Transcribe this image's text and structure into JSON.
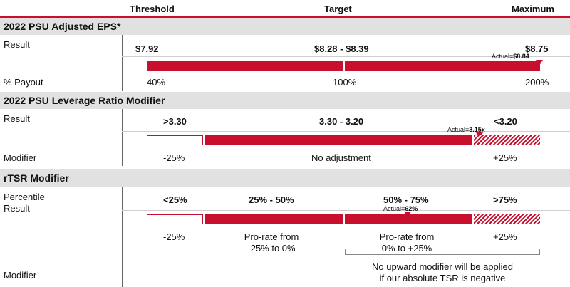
{
  "header": {
    "threshold": "Threshold",
    "target": "Target",
    "maximum": "Maximum"
  },
  "eps": {
    "title": "2022 PSU Adjusted EPS*",
    "result_label": "Result",
    "payout_label": "% Payout",
    "values": [
      "$7.92",
      "$8.28 - $8.39",
      "$8.75"
    ],
    "actual_prefix": "Actual=",
    "actual_value": "$8.84",
    "payouts": [
      "40%",
      "100%",
      "200%"
    ]
  },
  "leverage": {
    "title": "2022 PSU Leverage Ratio Modifier",
    "result_label": "Result",
    "modifier_label": "Modifier",
    "values": [
      ">3.30",
      "3.30 - 3.20",
      "<3.20"
    ],
    "actual_prefix": "Actual=",
    "actual_value": "3.15x",
    "modifiers": [
      "-25%",
      "No adjustment",
      "+25%"
    ]
  },
  "rtsr": {
    "title": "rTSR Modifier",
    "result_label_1": "Percentile",
    "result_label_2": "Result",
    "modifier_label": "Modifier",
    "values": [
      "<25%",
      "25% - 50%",
      "50% - 75%",
      ">75%"
    ],
    "actual_prefix": "Actual=",
    "actual_value": "62%",
    "mod_1": "-25%",
    "mod_2_line1": "Pro-rate from",
    "mod_2_line2": "-25% to 0%",
    "mod_3_line1": "Pro-rate from",
    "mod_3_line2": "0% to +25%",
    "mod_4": "+25%",
    "note_line1": "No upward modifier will be applied",
    "note_line2": "if our absolute TSR is negative"
  }
}
